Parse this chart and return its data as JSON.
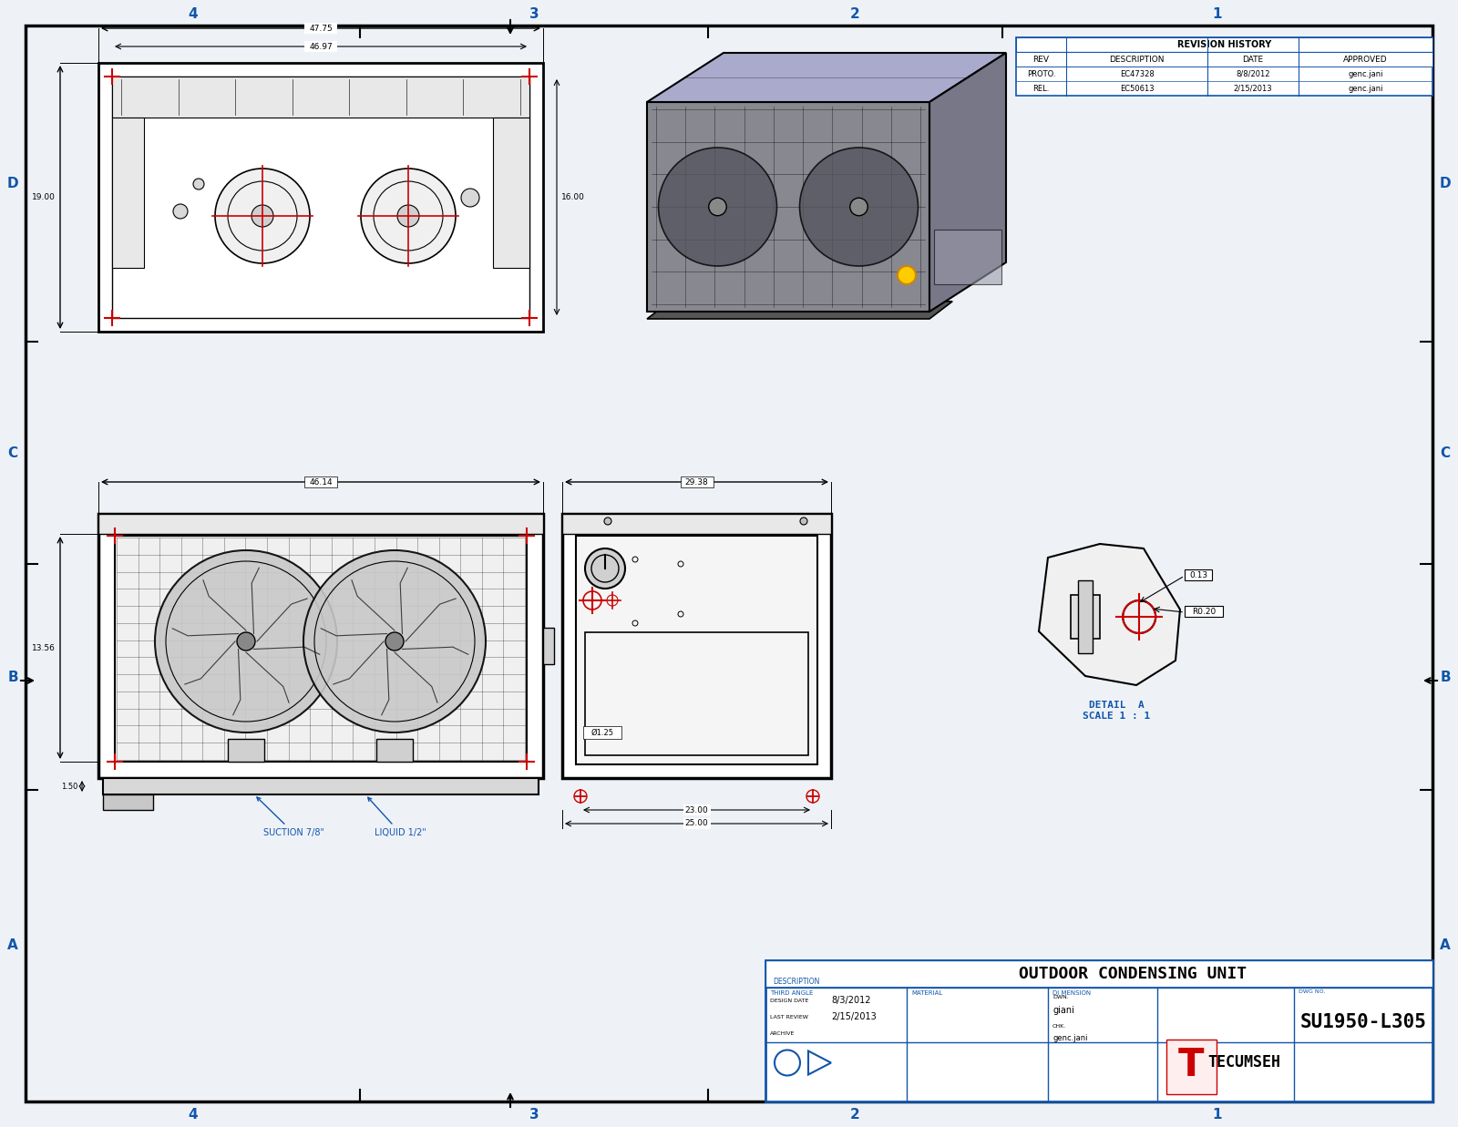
{
  "paper_color": "#ffffff",
  "bg_color": "#e8eef5",
  "border_color": "#1155aa",
  "line_color": "#000000",
  "dim_color": "#cc0000",
  "blue_text": "#1155aa",
  "gray_fill": "#d8d8d8",
  "drawing_number": "SU1950-L305",
  "description": "OUTDOOR CONDENSING UNIT",
  "dwn": "giani",
  "chk": "genc.jani",
  "design_date": "8/3/2012",
  "last_review": "2/15/2013",
  "revision_history": {
    "headers": [
      "REV",
      "DESCRIPTION",
      "DATE",
      "APPROVED"
    ],
    "rows": [
      [
        "PROTO.",
        "EC47328",
        "8/8/2012",
        "genc.jani"
      ],
      [
        "REL.",
        "EC50613",
        "2/15/2013",
        "genc.jani"
      ]
    ]
  },
  "zone_labels_x": [
    "4",
    "3",
    "2",
    "1"
  ],
  "zone_labels_y": [
    "D",
    "C",
    "B",
    "A"
  ],
  "top_view_dims": {
    "width_outer": "47.75",
    "width_inner": "46.97",
    "height_left": "19.00",
    "height_right": "16.00"
  },
  "front_view_dims": {
    "width": "46.14",
    "height": "13.56",
    "foot_height": "1.50"
  },
  "side_view_dims": {
    "width": "29.38",
    "diam": "Ø1.25",
    "dim2": "23.00",
    "dim3": "25.00"
  },
  "detail_a_dims": {
    "dim1": "0.13",
    "dim2": "R0.20",
    "label": "DETAIL  A\nSCALE 1 : 1"
  },
  "annotations": {
    "suction": "SUCTION 7/8\"",
    "liquid": "LIQUID 1/2\""
  }
}
